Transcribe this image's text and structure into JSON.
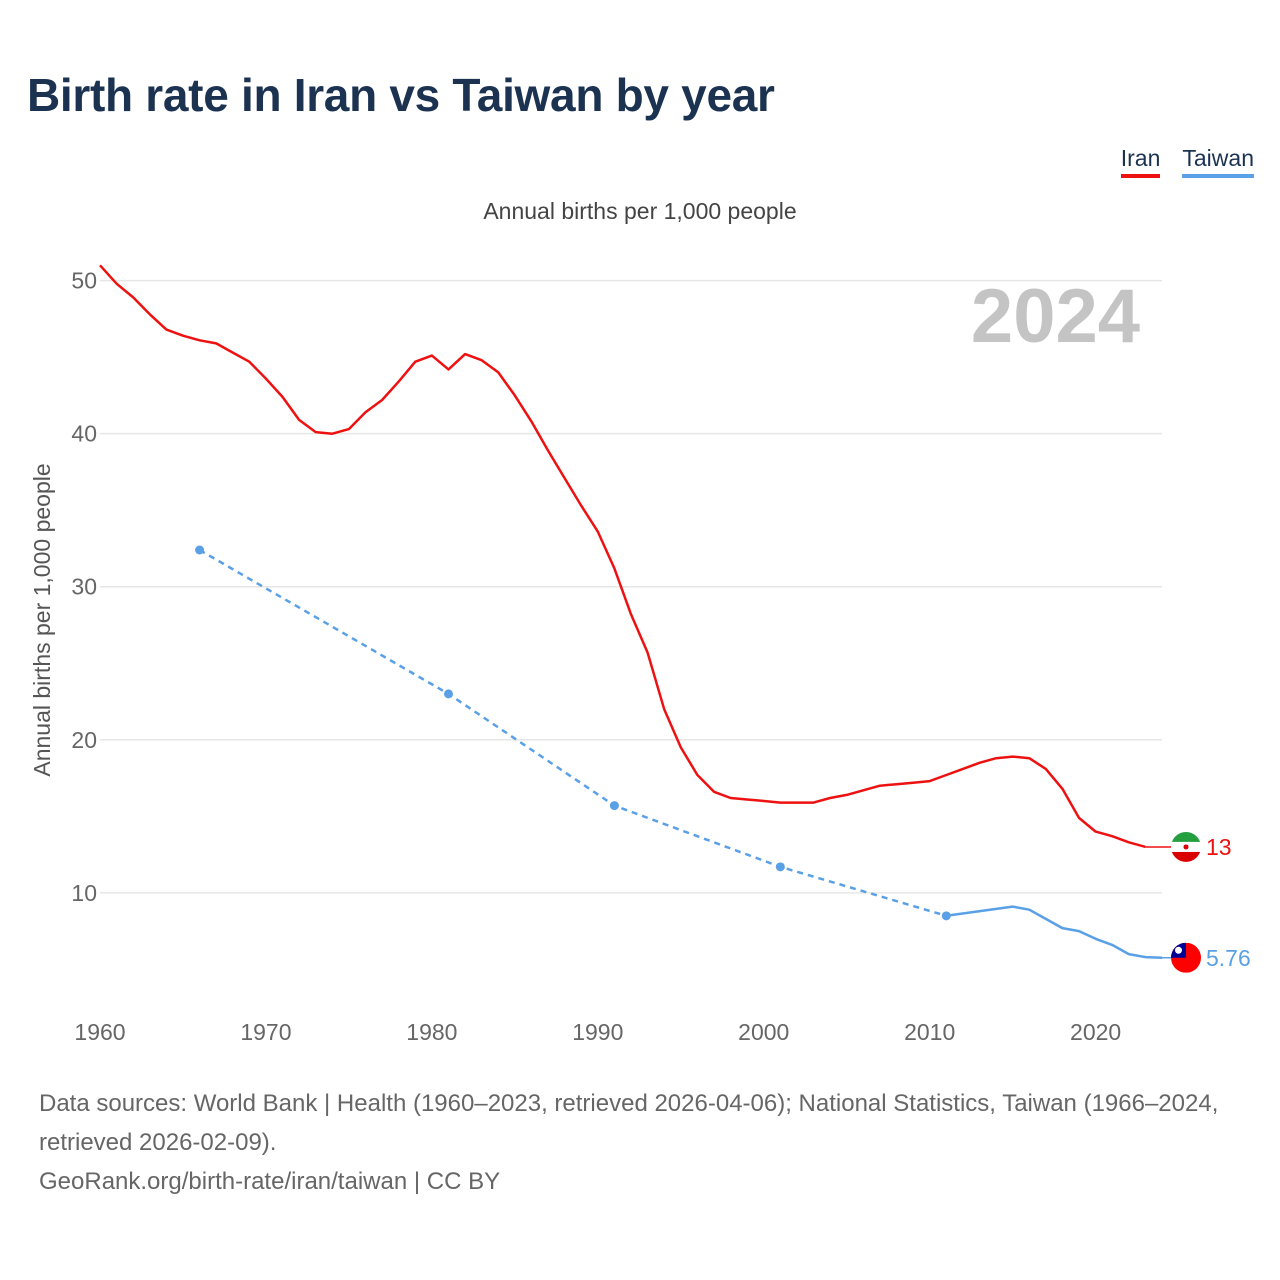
{
  "title": "Birth rate in Iran vs Taiwan by year",
  "subtitle": "Annual births per 1,000 people",
  "legend": [
    {
      "name": "Iran",
      "color": "#ee1111"
    },
    {
      "name": "Taiwan",
      "color": "#5aa0e6"
    }
  ],
  "year_watermark": "2024",
  "footer": {
    "sources": "Data sources: World Bank | Health (1960–2023, retrieved 2026-04-06); National Statistics, Taiwan (1966–2024, retrieved 2026-02-09).",
    "credit": "GeoRank.org/birth-rate/iran/taiwan | CC BY"
  },
  "chart_data": {
    "type": "line",
    "title": "Birth rate in Iran vs Taiwan by year",
    "ylabel": "Annual births per 1,000 people",
    "xlabel": "",
    "xlim": [
      1960,
      2024
    ],
    "ylim": [
      3,
      52
    ],
    "x_ticks": [
      1960,
      1970,
      1980,
      1990,
      2000,
      2010,
      2020
    ],
    "y_ticks": [
      10,
      20,
      30,
      40,
      50
    ],
    "grid": true,
    "series": [
      {
        "name": "Iran",
        "color": "#ee1111",
        "end_label": "13",
        "x": [
          1960,
          1961,
          1962,
          1963,
          1964,
          1965,
          1966,
          1967,
          1968,
          1969,
          1970,
          1971,
          1972,
          1973,
          1974,
          1975,
          1976,
          1977,
          1978,
          1979,
          1980,
          1981,
          1982,
          1983,
          1984,
          1985,
          1986,
          1987,
          1988,
          1989,
          1990,
          1991,
          1992,
          1993,
          1994,
          1995,
          1996,
          1997,
          1998,
          1999,
          2000,
          2001,
          2002,
          2003,
          2004,
          2005,
          2006,
          2007,
          2008,
          2009,
          2010,
          2011,
          2012,
          2013,
          2014,
          2015,
          2016,
          2017,
          2018,
          2019,
          2020,
          2021,
          2022,
          2023
        ],
        "values": [
          51.0,
          49.8,
          48.9,
          47.8,
          46.8,
          46.4,
          46.1,
          45.9,
          45.3,
          44.7,
          43.6,
          42.4,
          40.9,
          40.1,
          40.0,
          40.3,
          41.4,
          42.2,
          43.4,
          44.7,
          45.1,
          44.2,
          45.2,
          44.8,
          44.0,
          42.5,
          40.8,
          38.9,
          37.1,
          35.3,
          33.6,
          31.2,
          28.2,
          25.7,
          22.0,
          19.5,
          17.7,
          16.6,
          16.2,
          16.1,
          16.0,
          15.9,
          15.9,
          15.9,
          16.2,
          16.4,
          16.7,
          17.0,
          17.1,
          17.2,
          17.3,
          17.7,
          18.1,
          18.5,
          18.8,
          18.9,
          18.8,
          18.1,
          16.8,
          14.9,
          14.0,
          13.7,
          13.3,
          13.0
        ]
      },
      {
        "name": "Taiwan",
        "color": "#5aa0e6",
        "end_label": "5.76",
        "dashed_until": 2011,
        "marker_years": [
          1966,
          1981,
          1991,
          2001,
          2011
        ],
        "x": [
          1966,
          1981,
          1991,
          2001,
          2011,
          2015,
          2016,
          2017,
          2018,
          2019,
          2020,
          2021,
          2022,
          2023,
          2024
        ],
        "values": [
          32.4,
          23.0,
          15.7,
          11.7,
          8.5,
          9.1,
          8.9,
          8.3,
          7.7,
          7.5,
          7.0,
          6.6,
          6.0,
          5.8,
          5.76
        ]
      }
    ]
  }
}
